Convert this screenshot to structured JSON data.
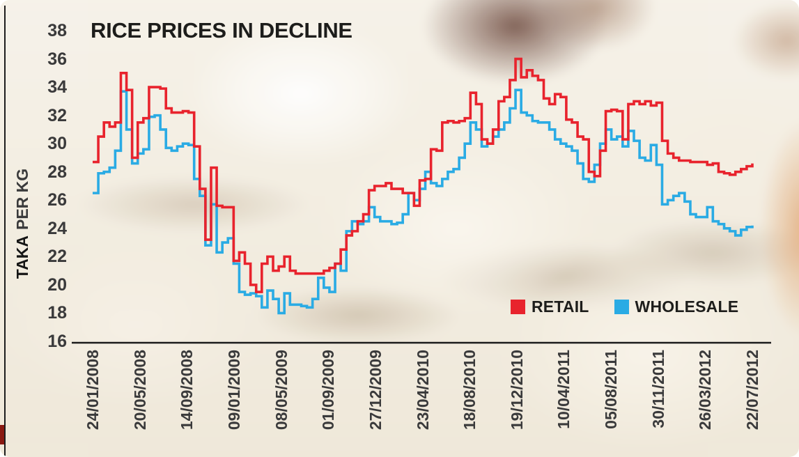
{
  "y_axis": {
    "bold": "TAKA",
    "rest": "PER KG"
  },
  "chart_data": {
    "type": "line",
    "title": "RICE PRICES IN DECLINE",
    "ylabel": "TAKA PER KG",
    "xlabel": "",
    "ylim": [
      16,
      38
    ],
    "grid": false,
    "line_style": "step",
    "legend_position": "bottom-right-inside",
    "y_ticks": [
      16,
      18,
      20,
      22,
      24,
      26,
      28,
      30,
      32,
      34,
      36,
      38
    ],
    "x_tick_labels": [
      "24/01/2008",
      "20/05/2008",
      "14/09/2008",
      "09/01/2009",
      "08/05/2009",
      "01/09/2009",
      "27/12/2009",
      "23/04/2010",
      "18/08/2010",
      "19/12/2010",
      "10/04/2011",
      "05/08/2011",
      "30/11/2011",
      "26/03/2012",
      "22/07/2012"
    ],
    "series": [
      {
        "name": "RETAIL",
        "color": "#e8232d",
        "values": [
          28.7,
          30.5,
          31.5,
          31.2,
          31.5,
          35.0,
          33.8,
          29.0,
          31.5,
          31.8,
          34.0,
          34.0,
          33.9,
          32.5,
          32.2,
          32.2,
          32.3,
          32.2,
          29.8,
          26.8,
          23.2,
          28.3,
          25.6,
          25.5,
          25.5,
          21.7,
          22.3,
          21.5,
          20.0,
          19.5,
          21.5,
          22.0,
          21.0,
          21.3,
          22.0,
          21.0,
          20.8,
          20.8,
          20.8,
          20.8,
          20.8,
          21.0,
          21.2,
          21.5,
          22.5,
          23.5,
          23.8,
          24.5,
          25.0,
          26.7,
          27.0,
          27.0,
          27.2,
          26.8,
          26.8,
          26.5,
          26.5,
          25.6,
          27.4,
          27.5,
          29.6,
          29.5,
          31.5,
          31.6,
          31.5,
          31.6,
          31.8,
          33.6,
          32.8,
          30.3,
          30.0,
          31.0,
          33.0,
          33.3,
          34.5,
          36.0,
          34.7,
          35.2,
          34.8,
          34.5,
          33.2,
          32.8,
          33.5,
          33.3,
          31.7,
          31.5,
          30.5,
          30.3,
          28.0,
          27.7,
          29.5,
          32.3,
          32.4,
          32.3,
          30.3,
          32.8,
          33.0,
          32.8,
          33.0,
          32.7,
          32.9,
          30.2,
          29.3,
          29.0,
          28.8,
          28.8,
          28.7,
          28.7,
          28.7,
          28.5,
          28.6,
          28.0,
          27.9,
          27.8,
          28.0,
          28.2,
          28.4,
          28.6
        ]
      },
      {
        "name": "WHOLESALE",
        "color": "#2aabe4",
        "values": [
          26.5,
          27.9,
          28.0,
          28.3,
          29.5,
          33.7,
          31.0,
          28.6,
          29.3,
          29.6,
          31.9,
          32.0,
          31.0,
          29.7,
          29.5,
          29.8,
          30.0,
          29.9,
          27.5,
          26.3,
          22.8,
          25.7,
          22.3,
          23.0,
          23.3,
          21.5,
          19.5,
          19.3,
          19.4,
          19.2,
          18.4,
          19.6,
          19.0,
          18.0,
          19.4,
          18.6,
          18.6,
          18.5,
          18.4,
          19.0,
          20.5,
          19.8,
          19.5,
          21.5,
          21.0,
          23.8,
          24.5,
          24.3,
          24.5,
          25.5,
          24.8,
          24.5,
          24.5,
          24.3,
          24.4,
          25.0,
          26.5,
          26.0,
          26.8,
          28.0,
          27.2,
          27.0,
          27.5,
          28.0,
          28.2,
          29.0,
          30.0,
          31.5,
          31.0,
          29.8,
          30.0,
          30.5,
          31.0,
          31.5,
          32.5,
          33.8,
          32.2,
          32.0,
          31.6,
          31.5,
          31.5,
          31.0,
          30.3,
          30.0,
          29.8,
          29.5,
          28.6,
          27.5,
          27.3,
          28.5,
          30.0,
          31.0,
          30.3,
          30.5,
          29.8,
          30.9,
          30.2,
          29.0,
          28.8,
          29.9,
          28.5,
          25.7,
          26.0,
          26.3,
          26.5,
          25.9,
          25.0,
          24.8,
          24.8,
          25.5,
          24.5,
          24.3,
          24.0,
          23.8,
          23.5,
          23.9,
          24.1,
          24.2
        ]
      }
    ]
  }
}
